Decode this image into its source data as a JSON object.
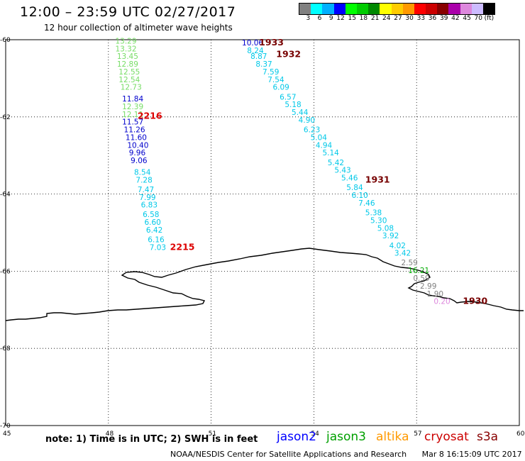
{
  "header": {
    "title": "12:00 – 23:59 UTC 02/27/2017",
    "subtitle": "12 hour collection of altimeter wave heights"
  },
  "colorbar": {
    "colors": [
      "#808080",
      "#00ffff",
      "#00b0ff",
      "#0000ff",
      "#00ff00",
      "#00cc00",
      "#008800",
      "#ffff00",
      "#ffcc00",
      "#ff9900",
      "#ff0000",
      "#cc0000",
      "#880000",
      "#aa00aa",
      "#dd88dd",
      "#ccbbff",
      "#000000"
    ],
    "labels": [
      "3",
      "6",
      "9",
      "12",
      "15",
      "18",
      "21",
      "24",
      "27",
      "30",
      "33",
      "36",
      "39",
      "42",
      "45",
      "70",
      "(ft)"
    ]
  },
  "map_extent": {
    "lon": [
      45,
      60
    ],
    "lat": [
      -70,
      -60
    ]
  },
  "axes": {
    "x_ticks": [
      "45",
      "48",
      "51",
      "54",
      "57",
      "60"
    ],
    "y_ticks": [
      "-60",
      "-62",
      "-64",
      "-66",
      "-68",
      "-70"
    ]
  },
  "track_west": {
    "colors": {
      "green": "#77dd66",
      "blue": "#0000cc",
      "cyan": "#00c8e8"
    },
    "points": [
      {
        "v": "13.29",
        "lon": 48.2,
        "lat": -60.1,
        "c": "green"
      },
      {
        "v": "13.32",
        "lon": 48.2,
        "lat": -60.3,
        "c": "green"
      },
      {
        "v": "13.45",
        "lon": 48.25,
        "lat": -60.5,
        "c": "green"
      },
      {
        "v": "12.89",
        "lon": 48.25,
        "lat": -60.7,
        "c": "green"
      },
      {
        "v": "12.55",
        "lon": 48.3,
        "lat": -60.9,
        "c": "green"
      },
      {
        "v": "12.54",
        "lon": 48.3,
        "lat": -61.1,
        "c": "green"
      },
      {
        "v": "12.73",
        "lon": 48.35,
        "lat": -61.3,
        "c": "green"
      },
      {
        "v": "11.84",
        "lon": 48.4,
        "lat": -61.6,
        "c": "blue"
      },
      {
        "v": "12.39",
        "lon": 48.4,
        "lat": -61.8,
        "c": "green"
      },
      {
        "v": "12.11",
        "lon": 48.4,
        "lat": -62.0,
        "c": "green"
      },
      {
        "v": "11.57",
        "lon": 48.4,
        "lat": -62.2,
        "c": "blue"
      },
      {
        "v": "11.26",
        "lon": 48.45,
        "lat": -62.4,
        "c": "blue"
      },
      {
        "v": "11.60",
        "lon": 48.5,
        "lat": -62.6,
        "c": "blue"
      },
      {
        "v": "10.40",
        "lon": 48.55,
        "lat": -62.8,
        "c": "blue"
      },
      {
        "v": "9.96",
        "lon": 48.6,
        "lat": -63.0,
        "c": "blue"
      },
      {
        "v": "9.06",
        "lon": 48.65,
        "lat": -63.2,
        "c": "blue"
      },
      {
        "v": "8.54",
        "lon": 48.75,
        "lat": -63.5,
        "c": "cyan"
      },
      {
        "v": "7.28",
        "lon": 48.8,
        "lat": -63.7,
        "c": "cyan"
      },
      {
        "v": "7.47",
        "lon": 48.85,
        "lat": -63.95,
        "c": "cyan"
      },
      {
        "v": "7.99",
        "lon": 48.9,
        "lat": -64.15,
        "c": "cyan"
      },
      {
        "v": "6.83",
        "lon": 48.95,
        "lat": -64.35,
        "c": "cyan"
      },
      {
        "v": "6.58",
        "lon": 49.0,
        "lat": -64.6,
        "c": "cyan"
      },
      {
        "v": "6.60",
        "lon": 49.05,
        "lat": -64.8,
        "c": "cyan"
      },
      {
        "v": "6.42",
        "lon": 49.1,
        "lat": -65.0,
        "c": "cyan"
      },
      {
        "v": "6.16",
        "lon": 49.15,
        "lat": -65.25,
        "c": "cyan"
      },
      {
        "v": "7.03",
        "lon": 49.2,
        "lat": -65.45,
        "c": "cyan"
      }
    ],
    "time_labels": [
      {
        "t": "2216",
        "lon": 48.85,
        "lat": -62.05
      },
      {
        "t": "2215",
        "lon": 49.8,
        "lat": -65.45
      }
    ]
  },
  "track_east": {
    "colors": {
      "blue": "#0000cc",
      "cyan": "#00c8e8",
      "green": "#00aa00",
      "gray": "#808080",
      "pink": "#dd88dd"
    },
    "points": [
      {
        "v": "10.06",
        "lon": 51.9,
        "lat": -60.15,
        "c": "blue"
      },
      {
        "v": "8.24",
        "lon": 52.05,
        "lat": -60.35,
        "c": "cyan"
      },
      {
        "v": "8.87",
        "lon": 52.15,
        "lat": -60.5,
        "c": "cyan"
      },
      {
        "v": "8.37",
        "lon": 52.3,
        "lat": -60.7,
        "c": "cyan"
      },
      {
        "v": "7.59",
        "lon": 52.5,
        "lat": -60.9,
        "c": "cyan"
      },
      {
        "v": "7.54",
        "lon": 52.65,
        "lat": -61.1,
        "c": "cyan"
      },
      {
        "v": "6.09",
        "lon": 52.8,
        "lat": -61.3,
        "c": "cyan"
      },
      {
        "v": "6.57",
        "lon": 53.0,
        "lat": -61.55,
        "c": "cyan"
      },
      {
        "v": "5.18",
        "lon": 53.15,
        "lat": -61.75,
        "c": "cyan"
      },
      {
        "v": "5.44",
        "lon": 53.35,
        "lat": -61.95,
        "c": "cyan"
      },
      {
        "v": "4.90",
        "lon": 53.55,
        "lat": -62.15,
        "c": "cyan"
      },
      {
        "v": "6.23",
        "lon": 53.7,
        "lat": -62.4,
        "c": "cyan"
      },
      {
        "v": "5.04",
        "lon": 53.9,
        "lat": -62.6,
        "c": "cyan"
      },
      {
        "v": "4.94",
        "lon": 54.05,
        "lat": -62.8,
        "c": "cyan"
      },
      {
        "v": "5.14",
        "lon": 54.25,
        "lat": -63.0,
        "c": "cyan"
      },
      {
        "v": "5.42",
        "lon": 54.4,
        "lat": -63.25,
        "c": "cyan"
      },
      {
        "v": "5.43",
        "lon": 54.6,
        "lat": -63.45,
        "c": "cyan"
      },
      {
        "v": "5.46",
        "lon": 54.8,
        "lat": -63.65,
        "c": "cyan"
      },
      {
        "v": "5.84",
        "lon": 54.95,
        "lat": -63.9,
        "c": "cyan"
      },
      {
        "v": "6.10",
        "lon": 55.1,
        "lat": -64.1,
        "c": "cyan"
      },
      {
        "v": "7.46",
        "lon": 55.3,
        "lat": -64.3,
        "c": "cyan"
      },
      {
        "v": "5.38",
        "lon": 55.5,
        "lat": -64.55,
        "c": "cyan"
      },
      {
        "v": "5.30",
        "lon": 55.65,
        "lat": -64.75,
        "c": "cyan"
      },
      {
        "v": "5.08",
        "lon": 55.85,
        "lat": -64.95,
        "c": "cyan"
      },
      {
        "v": "3.92",
        "lon": 56.0,
        "lat": -65.15,
        "c": "cyan"
      },
      {
        "v": "4.02",
        "lon": 56.2,
        "lat": -65.4,
        "c": "cyan"
      },
      {
        "v": "3.42",
        "lon": 56.35,
        "lat": -65.6,
        "c": "cyan"
      },
      {
        "v": "2.59",
        "lon": 56.55,
        "lat": -65.85,
        "c": "gray"
      },
      {
        "v": "16.21",
        "lon": 56.75,
        "lat": -66.05,
        "c": "green"
      },
      {
        "v": "0.59",
        "lon": 56.9,
        "lat": -66.25,
        "c": "gray"
      },
      {
        "v": "2.99",
        "lon": 57.1,
        "lat": -66.45,
        "c": "gray"
      },
      {
        "v": "1.90",
        "lon": 57.3,
        "lat": -66.65,
        "c": "gray"
      },
      {
        "v": "0.20",
        "lon": 57.5,
        "lat": -66.85,
        "c": "pink"
      }
    ],
    "time_labels": [
      {
        "t": "1933",
        "lon": 52.4,
        "lat": -60.15
      },
      {
        "t": "1932",
        "lon": 52.9,
        "lat": -60.45
      },
      {
        "t": "1931",
        "lon": 55.5,
        "lat": -63.7
      },
      {
        "t": "1930",
        "lon": 58.35,
        "lat": -66.85
      }
    ]
  },
  "footer": {
    "note": "note: 1) Time is in UTC; 2) SWH is in feet",
    "satellites": [
      {
        "name": "jason2",
        "color": "#0000ff"
      },
      {
        "name": "jason3",
        "color": "#00a000"
      },
      {
        "name": "altika",
        "color": "#ff9900"
      },
      {
        "name": "cryosat",
        "color": "#cc0000"
      },
      {
        "name": "s3a",
        "color": "#880000"
      }
    ],
    "credit": "NOAA/NESDIS Center for Satellite Applications and Research",
    "timestamp": "Mar  8 16:15:09 UTC 2017"
  }
}
